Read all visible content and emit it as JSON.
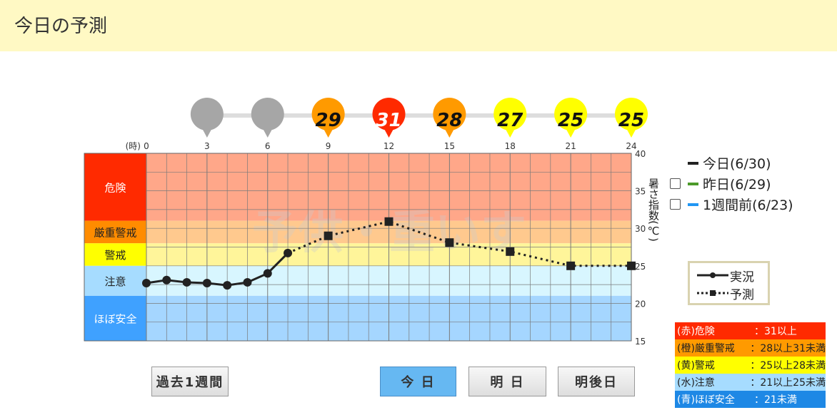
{
  "header": {
    "title": "今日の予測"
  },
  "chart_data": {
    "type": "line",
    "x_unit_label": "(時)",
    "x_ticks": [
      "0",
      "3",
      "6",
      "9",
      "12",
      "15",
      "18",
      "21",
      "24"
    ],
    "xlim": [
      0,
      24
    ],
    "y_ticks": [
      "15",
      "20",
      "25",
      "30",
      "35",
      "40"
    ],
    "ylim": [
      15,
      40
    ],
    "ylabel": "暑さ指数(℃)",
    "watermark": "予供・重いす",
    "bands": [
      {
        "label": "危険",
        "from": 31,
        "to": 40,
        "color": "#ffa789",
        "label_color": "#ff2a00"
      },
      {
        "label": "厳重警戒",
        "from": 28,
        "to": 31,
        "color": "#ffc98e",
        "label_color": "#ff8c00"
      },
      {
        "label": "警戒",
        "from": 25,
        "to": 28,
        "color": "#fff59a",
        "label_color": "#ffff00"
      },
      {
        "label": "注意",
        "from": 21,
        "to": 25,
        "color": "#d8f6ff",
        "label_color": "#a6dcff"
      },
      {
        "label": "ほぼ安全",
        "from": 15,
        "to": 21,
        "color": "#a5d6ff",
        "label_color": "#3fa1ff"
      }
    ],
    "series": [
      {
        "name": "実況",
        "style": "solid",
        "color": "#222222",
        "points": [
          [
            0,
            22.7
          ],
          [
            1,
            23.1
          ],
          [
            2,
            22.8
          ],
          [
            3,
            22.7
          ],
          [
            4,
            22.4
          ],
          [
            5,
            22.8
          ],
          [
            6,
            24.0
          ],
          [
            7,
            26.7
          ]
        ]
      },
      {
        "name": "予測",
        "style": "dotted",
        "color": "#222222",
        "points": [
          [
            7,
            26.7
          ],
          [
            9,
            29.0
          ],
          [
            12,
            30.9
          ],
          [
            15,
            28.1
          ],
          [
            18,
            26.9
          ],
          [
            21,
            25.0
          ],
          [
            24,
            25.0
          ]
        ]
      }
    ],
    "forecast_markers": [
      {
        "hour": 3,
        "label": "",
        "color": "#a6a6a6"
      },
      {
        "hour": 6,
        "label": "",
        "color": "#a6a6a6"
      },
      {
        "hour": 9,
        "label": "29",
        "color": "#ff9a00"
      },
      {
        "hour": 12,
        "label": "31",
        "color": "#ff2a00"
      },
      {
        "hour": 15,
        "label": "28",
        "color": "#ff9a00"
      },
      {
        "hour": 18,
        "label": "27",
        "color": "#ffff00"
      },
      {
        "hour": 21,
        "label": "25",
        "color": "#ffff00"
      },
      {
        "hour": 24,
        "label": "25",
        "color": "#ffff00"
      }
    ]
  },
  "legend": {
    "items": [
      {
        "label": "今日(6/30)",
        "color": "#222222",
        "has_checkbox": false
      },
      {
        "label": "昨日(6/29)",
        "color": "#4c9a2a",
        "has_checkbox": true
      },
      {
        "label": "1週間前(6/23)",
        "color": "#2196f3",
        "has_checkbox": true
      }
    ],
    "actual_label": "実況",
    "forecast_label": "予測"
  },
  "levels": [
    {
      "name": "(赤)危険",
      "range": "：31以上",
      "color": "#ff2a00",
      "text_color": "#ffffff"
    },
    {
      "name": "(橙)厳重警戒",
      "range": "：28以上31未満",
      "color": "#ff9a00",
      "text_color": "#222222"
    },
    {
      "name": "(黄)警戒",
      "range": "：25以上28未満",
      "color": "#ffff00",
      "text_color": "#222222"
    },
    {
      "name": "(水)注意",
      "range": "：21以上25未満",
      "color": "#a6dcff",
      "text_color": "#222222"
    },
    {
      "name": "(青)ほぼ安全",
      "range": "：21未満",
      "color": "#1e88e5",
      "text_color": "#ffffff"
    }
  ],
  "buttons": {
    "past_week": "過去1週間",
    "today": "今 日",
    "tomorrow": "明 日",
    "day_after": "明後日"
  }
}
